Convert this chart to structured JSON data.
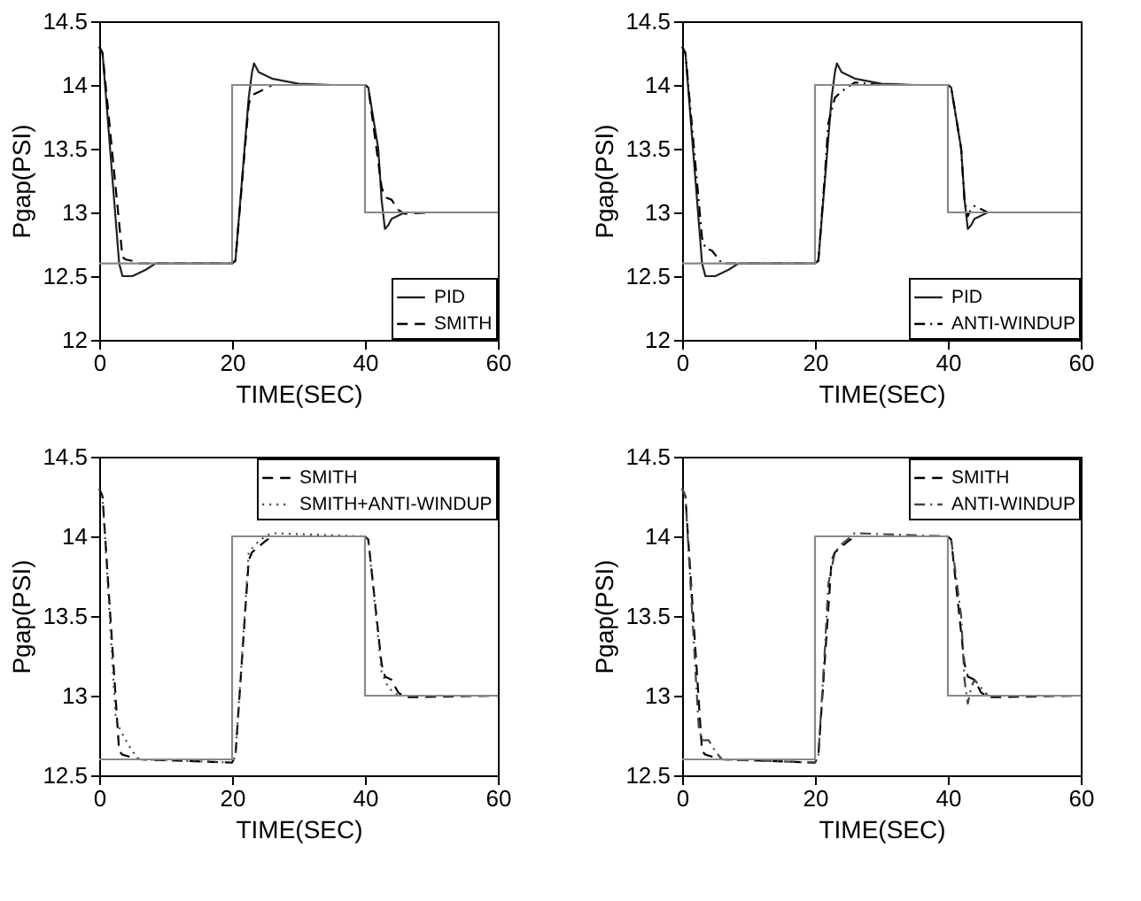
{
  "chart_data": [
    {
      "type": "line",
      "xlabel": "TIME(SEC)",
      "ylabel": "Pgap(PSI)",
      "xlim": [
        0,
        60
      ],
      "xticks": [
        0,
        20,
        40,
        60
      ],
      "ylim": [
        12,
        14.5
      ],
      "yticks": [
        12,
        12.5,
        13,
        13.5,
        14,
        14.5
      ],
      "grid": false,
      "legend": "bottom right",
      "series": [
        {
          "color": "#888888",
          "line_style": "solid",
          "x": [
            0,
            20,
            20,
            40,
            40,
            60
          ],
          "values": [
            12.6,
            12.6,
            14,
            14,
            13,
            13
          ]
        },
        {
          "name": "PID",
          "color": "#222222",
          "line_style": "solid",
          "x": [
            0,
            0.5,
            3,
            3.5,
            5,
            7,
            8.5,
            12,
            20,
            20.5,
            22.5,
            23,
            23.3,
            24,
            26,
            30,
            35,
            40,
            40.5,
            42,
            42.5,
            43,
            43.5,
            44,
            46,
            50,
            60
          ],
          "values": [
            14.3,
            14.25,
            12.6,
            12.5,
            12.5,
            12.55,
            12.6,
            12.6,
            12.6,
            12.62,
            13.9,
            14.1,
            14.17,
            14.1,
            14.05,
            14.01,
            14.0,
            14.0,
            13.98,
            13.5,
            13.1,
            12.87,
            12.9,
            12.95,
            13.0,
            13.0,
            13.0
          ]
        },
        {
          "name": "SMITH",
          "color": "#000000",
          "line_style": "dashed",
          "x": [
            0,
            0.5,
            3.5,
            4,
            5,
            6,
            10,
            20,
            20.5,
            22.5,
            23,
            25,
            26,
            30,
            40,
            40.5,
            42.5,
            43,
            44,
            45,
            46,
            50,
            60
          ],
          "values": [
            14.3,
            14.25,
            12.65,
            12.63,
            12.62,
            12.6,
            12.6,
            12.6,
            12.62,
            13.85,
            13.92,
            13.97,
            14.0,
            14.0,
            14.0,
            13.98,
            13.2,
            13.12,
            13.1,
            13.02,
            12.99,
            13.0,
            13.0
          ]
        }
      ]
    },
    {
      "type": "line",
      "xlabel": "TIME(SEC)",
      "ylabel": "Pgap(PSI)",
      "xlim": [
        0,
        60
      ],
      "xticks": [
        0,
        20,
        40,
        60
      ],
      "ylim": [
        12,
        14.5
      ],
      "yticks": [
        12,
        12.5,
        13,
        13.5,
        14,
        14.5
      ],
      "grid": false,
      "legend": "bottom right",
      "series": [
        {
          "color": "#888888",
          "line_style": "solid",
          "x": [
            0,
            20,
            20,
            40,
            40,
            60
          ],
          "values": [
            12.6,
            12.6,
            14,
            14,
            13,
            13
          ]
        },
        {
          "name": "PID",
          "color": "#222222",
          "line_style": "solid",
          "x": [
            0,
            0.5,
            3,
            3.5,
            5,
            7,
            8.5,
            12,
            20,
            20.5,
            22.5,
            23,
            23.3,
            24,
            26,
            30,
            35,
            40,
            40.5,
            42,
            42.5,
            43,
            43.5,
            44,
            46,
            50,
            60
          ],
          "values": [
            14.3,
            14.25,
            12.6,
            12.5,
            12.5,
            12.55,
            12.6,
            12.6,
            12.6,
            12.62,
            13.9,
            14.1,
            14.17,
            14.1,
            14.05,
            14.01,
            14.0,
            14.0,
            13.98,
            13.5,
            13.1,
            12.87,
            12.9,
            12.95,
            13.0,
            13.0,
            13.0
          ]
        },
        {
          "name": "ANTI-WINDUP",
          "color": "#000000",
          "line_style": "dashdot",
          "x": [
            0,
            0.5,
            3,
            3.5,
            4.5,
            6,
            10,
            20,
            20.5,
            21.5,
            22,
            23,
            24,
            26,
            30,
            40,
            40.5,
            42,
            42.5,
            43,
            43.5,
            44,
            46,
            60
          ],
          "values": [
            14.3,
            14.25,
            12.8,
            12.72,
            12.7,
            12.6,
            12.6,
            12.6,
            12.62,
            13.3,
            13.7,
            13.9,
            13.95,
            14.02,
            14.0,
            14.0,
            13.98,
            13.5,
            13.1,
            12.97,
            13.03,
            13.05,
            13.0,
            13.0
          ]
        }
      ]
    },
    {
      "type": "line",
      "xlabel": "TIME(SEC)",
      "ylabel": "Pgap(PSI)",
      "xlim": [
        0,
        60
      ],
      "xticks": [
        0,
        20,
        40,
        60
      ],
      "ylim": [
        12.5,
        14.5
      ],
      "yticks": [
        12.5,
        13,
        13.5,
        14,
        14.5
      ],
      "grid": false,
      "legend": "top right",
      "series": [
        {
          "color": "#888888",
          "line_style": "solid",
          "x": [
            0,
            20,
            20,
            40,
            40,
            60
          ],
          "values": [
            12.6,
            12.6,
            14,
            14,
            13,
            13
          ]
        },
        {
          "name": "SMITH",
          "color": "#000000",
          "line_style": "dashed",
          "x": [
            0,
            0.5,
            3,
            3.5,
            6,
            20,
            20.5,
            22.5,
            23,
            25,
            26,
            40,
            40.5,
            42.5,
            43,
            44,
            45,
            46,
            60
          ],
          "values": [
            14.3,
            14.25,
            12.65,
            12.63,
            12.6,
            12.58,
            12.62,
            13.85,
            13.9,
            13.97,
            14.0,
            14.0,
            13.98,
            13.2,
            13.12,
            13.1,
            13.02,
            12.99,
            13.0
          ]
        },
        {
          "name": "SMITH+ANTI-WINDUP",
          "color": "#444444",
          "line_style": "dotted",
          "x": [
            0,
            0.5,
            2.5,
            3,
            4,
            5,
            6,
            20,
            20.5,
            22.5,
            23.5,
            25,
            26,
            40,
            40.5,
            42.5,
            43.5,
            45,
            60
          ],
          "values": [
            14.3,
            14.25,
            12.85,
            12.8,
            12.72,
            12.65,
            12.6,
            12.58,
            12.62,
            13.9,
            13.95,
            14.0,
            14.02,
            14.0,
            13.98,
            13.15,
            13.05,
            13.0,
            13.0
          ]
        }
      ]
    },
    {
      "type": "line",
      "xlabel": "TIME(SEC)",
      "ylabel": "Pgap(PSI)",
      "xlim": [
        0,
        60
      ],
      "xticks": [
        0,
        20,
        40,
        60
      ],
      "ylim": [
        12.5,
        14.5
      ],
      "yticks": [
        12.5,
        13,
        13.5,
        14,
        14.5
      ],
      "grid": false,
      "legend": "top right",
      "series": [
        {
          "color": "#888888",
          "line_style": "solid",
          "x": [
            0,
            20,
            20,
            40,
            40,
            60
          ],
          "values": [
            12.6,
            12.6,
            14,
            14,
            13,
            13
          ]
        },
        {
          "name": "SMITH",
          "color": "#000000",
          "line_style": "dashed",
          "x": [
            0,
            0.5,
            3,
            3.5,
            6,
            20,
            20.5,
            22.5,
            23,
            25,
            26,
            40,
            40.5,
            42.5,
            43,
            44,
            45,
            46,
            60
          ],
          "values": [
            14.3,
            14.25,
            12.65,
            12.63,
            12.6,
            12.58,
            12.62,
            13.85,
            13.9,
            13.97,
            14.0,
            14.0,
            13.98,
            13.2,
            13.12,
            13.1,
            13.02,
            12.99,
            13.0
          ]
        },
        {
          "name": "ANTI-WINDUP",
          "color": "#444444",
          "line_style": "dashdot",
          "x": [
            0,
            0.5,
            2.5,
            3,
            4,
            5,
            6,
            20,
            20.5,
            21.5,
            22,
            23,
            24,
            26,
            40,
            40.5,
            42,
            42.5,
            43,
            43.5,
            44,
            46,
            60
          ],
          "values": [
            14.3,
            14.25,
            12.8,
            12.72,
            12.72,
            12.65,
            12.6,
            12.58,
            12.62,
            13.3,
            13.7,
            13.9,
            13.95,
            14.02,
            14.0,
            13.98,
            13.5,
            13.1,
            12.95,
            13.05,
            13.1,
            13.0,
            13.0
          ]
        }
      ]
    }
  ]
}
